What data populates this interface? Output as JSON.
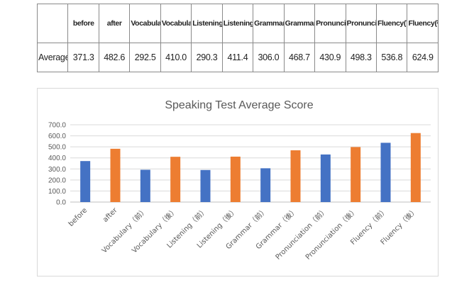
{
  "table": {
    "corner": "",
    "headers": [
      "before",
      "after",
      "Vocabulary(前)",
      "Vocabulary(後)",
      "Listening(前)",
      "Listening(後)",
      "Grammar(前)",
      "Grammar(後)",
      "Pronunciation(前)",
      "Pronunciation(後)",
      "Fluency(前)",
      "Fluency(後)"
    ],
    "row_label": "Average",
    "values": [
      "371.3",
      "482.6",
      "292.5",
      "410.0",
      "290.3",
      "411.4",
      "306.0",
      "468.7",
      "430.9",
      "498.3",
      "536.8",
      "624.9"
    ]
  },
  "chart_data": {
    "type": "bar",
    "title": "Speaking Test Average Score",
    "categories": [
      "before",
      "after",
      "Vocabulary（前）",
      "Vocabulary（後）",
      "Listening（前）",
      "Listening（後）",
      "Grammar（前）",
      "Grammar（後）",
      "Pronunciation（前）",
      "Pronunciation（後）",
      "Fluency（前）",
      "Fluency（後）"
    ],
    "values": [
      371.3,
      482.6,
      292.5,
      410.0,
      290.3,
      411.4,
      306.0,
      468.7,
      430.9,
      498.3,
      536.8,
      624.9
    ],
    "bar_colors": [
      "#4472c4",
      "#ed7d31",
      "#4472c4",
      "#ed7d31",
      "#4472c4",
      "#ed7d31",
      "#4472c4",
      "#ed7d31",
      "#4472c4",
      "#ed7d31",
      "#4472c4",
      "#ed7d31"
    ],
    "y_ticks": [
      "0.0",
      "100.0",
      "200.0",
      "300.0",
      "400.0",
      "500.0",
      "600.0",
      "700.0"
    ],
    "ylim": [
      0,
      700
    ],
    "xlabel": "",
    "ylabel": "",
    "grid": true,
    "legend": "none"
  }
}
